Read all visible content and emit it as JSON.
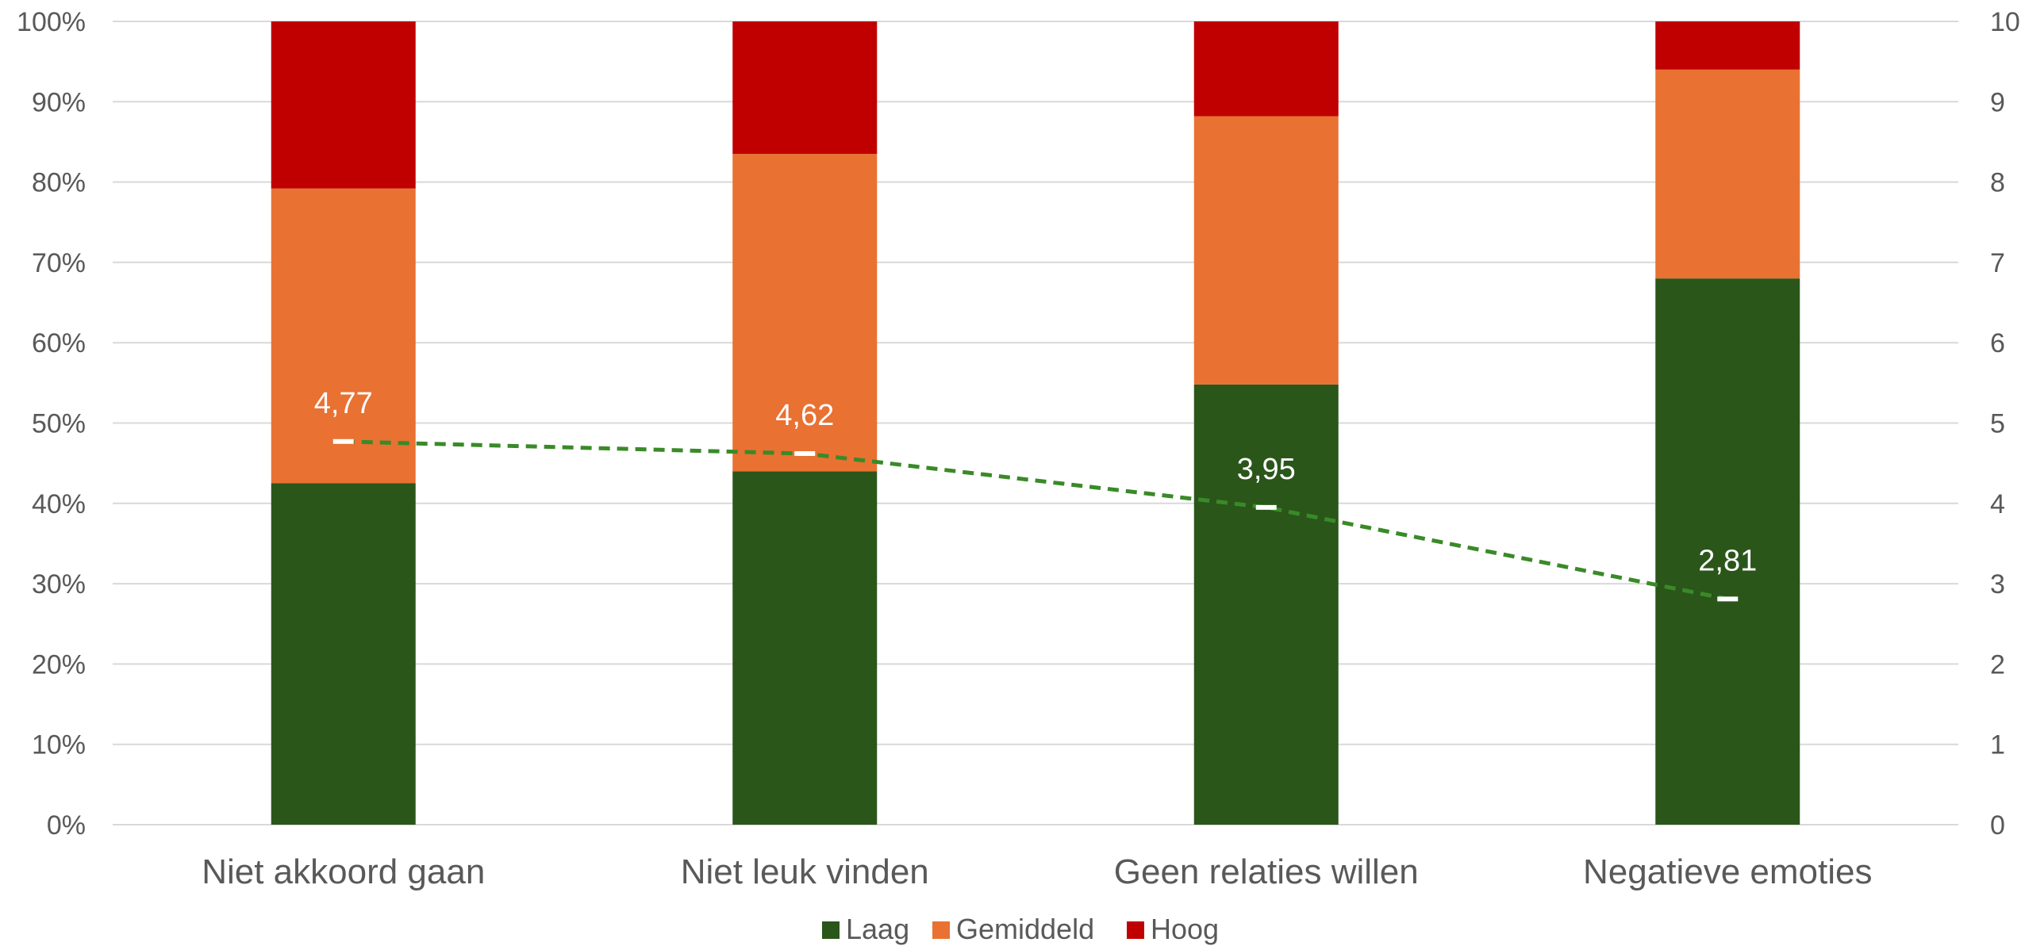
{
  "chart_data": {
    "type": "bar",
    "stacked": true,
    "percent_stacked": true,
    "categories": [
      "Niet akkoord gaan",
      "Niet leuk vinden",
      "Geen relaties willen",
      "Negatieve emoties"
    ],
    "series": [
      {
        "name": "Laag",
        "values": [
          42.5,
          44,
          54.8,
          68
        ],
        "color": "#2a561a"
      },
      {
        "name": "Gemiddeld",
        "values": [
          36.7,
          39.5,
          33.4,
          26
        ],
        "color": "#e97132"
      },
      {
        "name": "Hoog",
        "values": [
          20.8,
          16.5,
          11.8,
          6
        ],
        "color": "#c00000"
      }
    ],
    "line_series": {
      "values": [
        4.77,
        4.62,
        3.95,
        2.81
      ],
      "labels": [
        "4,77",
        "4,62",
        "3,95",
        "2,81"
      ],
      "color": "#3a8a28",
      "style": "dashed",
      "axis": "secondary"
    },
    "y_left": {
      "range": [
        0,
        100
      ],
      "ticks": [
        "0%",
        "10%",
        "20%",
        "30%",
        "40%",
        "50%",
        "60%",
        "70%",
        "80%",
        "90%",
        "100%"
      ]
    },
    "y_right": {
      "range": [
        0,
        10
      ],
      "ticks": [
        "0",
        "1",
        "2",
        "3",
        "4",
        "5",
        "6",
        "7",
        "8",
        "9",
        "10"
      ]
    },
    "grid": true,
    "legend": {
      "placement": "bottom",
      "entries": [
        "Laag",
        "Gemiddeld",
        "Hoog"
      ]
    }
  }
}
